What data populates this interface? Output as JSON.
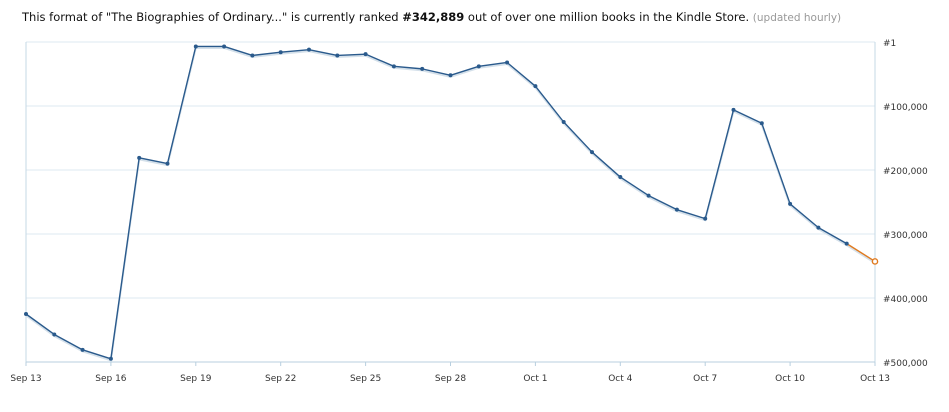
{
  "header": {
    "prefix": "This format of \"The Biographies of Ordinary...\" is currently ranked ",
    "rank": "#342,889",
    "suffix": " out of over one million books in the Kindle Store. ",
    "updated": "(updated hourly)"
  },
  "chart_data": {
    "type": "line",
    "title": "",
    "xlabel": "",
    "ylabel": "",
    "y_inverted": true,
    "ylim": [
      500000,
      1
    ],
    "y_ticks": [
      {
        "value": 1,
        "label": "#1"
      },
      {
        "value": 100000,
        "label": "#100,000"
      },
      {
        "value": 200000,
        "label": "#200,000"
      },
      {
        "value": 300000,
        "label": "#300,000"
      },
      {
        "value": 400000,
        "label": "#400,000"
      },
      {
        "value": 500000,
        "label": "#500,000"
      }
    ],
    "x_ticks": [
      "Sep 13",
      "Sep 16",
      "Sep 19",
      "Sep 22",
      "Sep 25",
      "Sep 28",
      "Oct 1",
      "Oct 4",
      "Oct 7",
      "Oct 10",
      "Oct 13"
    ],
    "grid": true,
    "series": [
      {
        "color": "#2a5a8c",
        "points": [
          {
            "x": "Sep 13",
            "y": 425000
          },
          {
            "x": "Sep 14",
            "y": 457000
          },
          {
            "x": "Sep 15",
            "y": 481000
          },
          {
            "x": "Sep 16",
            "y": 495000
          },
          {
            "x": "Sep 17",
            "y": 181000
          },
          {
            "x": "Sep 18",
            "y": 190000
          },
          {
            "x": "Sep 19",
            "y": 7000
          },
          {
            "x": "Sep 20",
            "y": 7000
          },
          {
            "x": "Sep 21",
            "y": 21000
          },
          {
            "x": "Sep 22",
            "y": 16000
          },
          {
            "x": "Sep 23",
            "y": 12000
          },
          {
            "x": "Sep 24",
            "y": 21000
          },
          {
            "x": "Sep 25",
            "y": 19000
          },
          {
            "x": "Sep 26",
            "y": 38000
          },
          {
            "x": "Sep 27",
            "y": 42000
          },
          {
            "x": "Sep 28",
            "y": 52000
          },
          {
            "x": "Sep 29",
            "y": 38000
          },
          {
            "x": "Sep 30",
            "y": 32000
          },
          {
            "x": "Oct 1",
            "y": 69000
          },
          {
            "x": "Oct 2",
            "y": 125000
          },
          {
            "x": "Oct 3",
            "y": 172000
          },
          {
            "x": "Oct 4",
            "y": 211000
          },
          {
            "x": "Oct 5",
            "y": 240000
          },
          {
            "x": "Oct 6",
            "y": 262000
          },
          {
            "x": "Oct 7",
            "y": 276000
          },
          {
            "x": "Oct 8",
            "y": 106000
          },
          {
            "x": "Oct 9",
            "y": 127000
          },
          {
            "x": "Oct 10",
            "y": 253000
          },
          {
            "x": "Oct 11",
            "y": 290000
          },
          {
            "x": "Oct 12",
            "y": 315000
          }
        ]
      },
      {
        "color": "#e07a1f",
        "points": [
          {
            "x": "Oct 12",
            "y": 315000
          },
          {
            "x": "Oct 13",
            "y": 342889
          }
        ]
      }
    ]
  }
}
